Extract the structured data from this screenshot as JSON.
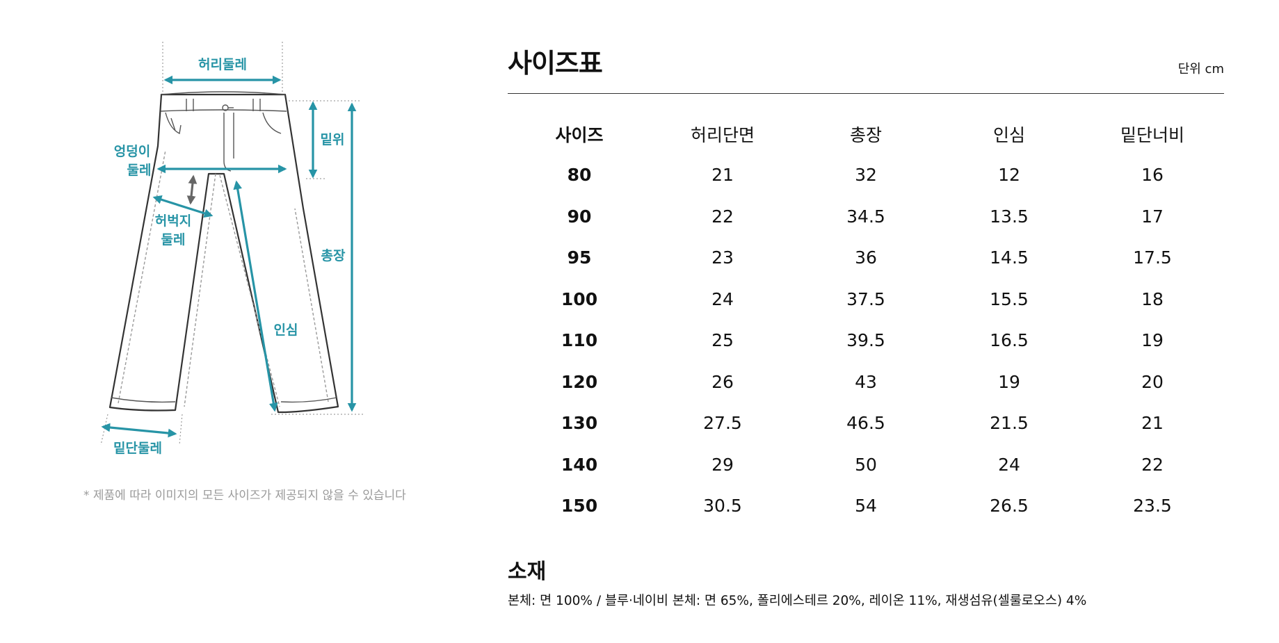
{
  "diagram": {
    "labels": {
      "waist": "허리둘레",
      "rise": "밑위",
      "hip_line1": "엉덩이",
      "hip_line2": "둘레",
      "thigh_line1": "허벅지",
      "thigh_line2": "둘레",
      "length": "총장",
      "inseam": "인심",
      "hem": "밑단둘레"
    },
    "accent_color": "#2794a6",
    "icons": [
      "pants-outline-icon",
      "measure-arrow-icon"
    ]
  },
  "note": "* 제품에 따라 이미지의 모든 사이즈가 제공되지 않을 수 있습니다",
  "size_chart": {
    "title": "사이즈표",
    "unit": "단위 cm",
    "headers": [
      "사이즈",
      "허리단면",
      "총장",
      "인심",
      "밑단너비"
    ],
    "rows": [
      [
        "80",
        "21",
        "32",
        "12",
        "16"
      ],
      [
        "90",
        "22",
        "34.5",
        "13.5",
        "17"
      ],
      [
        "95",
        "23",
        "36",
        "14.5",
        "17.5"
      ],
      [
        "100",
        "24",
        "37.5",
        "15.5",
        "18"
      ],
      [
        "110",
        "25",
        "39.5",
        "16.5",
        "19"
      ],
      [
        "120",
        "26",
        "43",
        "19",
        "20"
      ],
      [
        "130",
        "27.5",
        "46.5",
        "21.5",
        "21"
      ],
      [
        "140",
        "29",
        "50",
        "24",
        "22"
      ],
      [
        "150",
        "30.5",
        "54",
        "26.5",
        "23.5"
      ]
    ]
  },
  "material": {
    "title": "소재",
    "text": "본체: 면 100% / 블루·네이비 본체: 면 65%, 폴리에스테르 20%, 레이온 11%, 재생섬유(셀룰로오스) 4%"
  }
}
